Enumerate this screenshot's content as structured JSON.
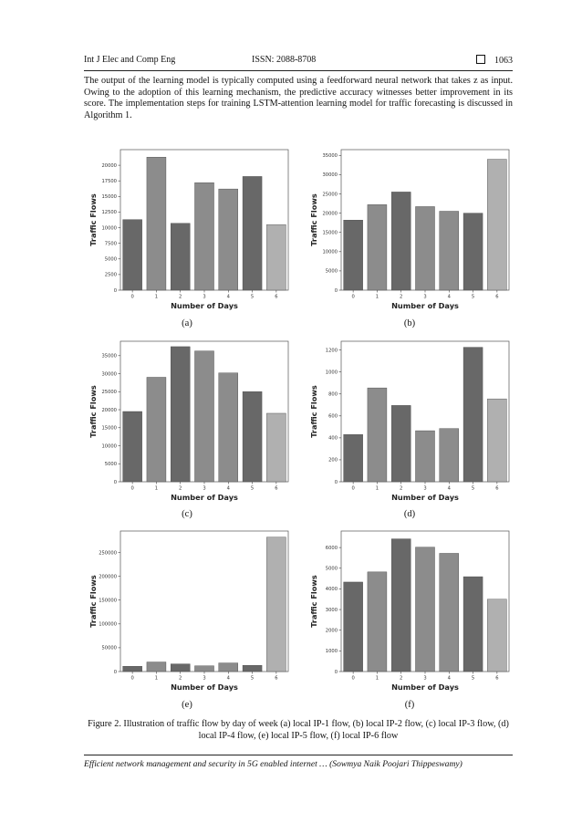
{
  "header": {
    "journal": "Int J Elec and Comp Eng",
    "issn": "ISSN: 2088-8708",
    "page": "1063"
  },
  "paragraph": "The output of the learning model is typically computed using a feedforward neural network that takes z as input. Owing to the adoption of this learning mechanism, the predictive accuracy witnesses better improvement in its score. The implementation steps for training LSTM-attention learning model for traffic forecasting is discussed in Algorithm 1.",
  "figure": {
    "sublabels": [
      "(a)",
      "(b)",
      "(c)",
      "(d)",
      "(e)",
      "(f)"
    ],
    "caption": "Figure 2. Illustration of traffic flow by day of week (a) local IP-1 flow, (b) local IP-2 flow, (c) local IP-3 flow, (d) local IP-4 flow, (e) local IP-5 flow, (f) local IP-6 flow"
  },
  "footer": "Efficient network management and security in 5G enabled internet … (Sowmya Naik Poojari Thippeswamy)",
  "colors": {
    "bar_shades": [
      "#686868",
      "#8c8c8c",
      "#686868",
      "#8c8c8c",
      "#8c8c8c",
      "#686868",
      "#b0b0b0"
    ]
  },
  "chart_data": [
    {
      "type": "bar",
      "xlabel": "Number of Days",
      "ylabel": "Traffic Flows",
      "categories": [
        "0",
        "1",
        "2",
        "3",
        "4",
        "5",
        "6"
      ],
      "values": [
        11300,
        21300,
        10700,
        17200,
        16200,
        18200,
        10500
      ],
      "yticks": [
        0,
        2500,
        5000,
        7500,
        10000,
        12500,
        15000,
        17500,
        20000
      ],
      "ylim": [
        0,
        22500
      ]
    },
    {
      "type": "bar",
      "xlabel": "Number of Days",
      "ylabel": "Traffic Flows",
      "categories": [
        "0",
        "1",
        "2",
        "3",
        "4",
        "5",
        "6"
      ],
      "values": [
        18200,
        22200,
        25500,
        21700,
        20500,
        20000,
        34000
      ],
      "yticks": [
        0,
        5000,
        10000,
        15000,
        20000,
        25000,
        30000,
        35000
      ],
      "ylim": [
        0,
        36500
      ]
    },
    {
      "type": "bar",
      "xlabel": "Number of Days",
      "ylabel": "Traffic Flows",
      "categories": [
        "0",
        "1",
        "2",
        "3",
        "4",
        "5",
        "6"
      ],
      "values": [
        19500,
        29000,
        37500,
        36300,
        30200,
        25000,
        19000
      ],
      "yticks": [
        0,
        5000,
        10000,
        15000,
        20000,
        25000,
        30000,
        35000
      ],
      "ylim": [
        0,
        39000
      ]
    },
    {
      "type": "bar",
      "xlabel": "Number of Days",
      "ylabel": "Traffic Flows",
      "categories": [
        "0",
        "1",
        "2",
        "3",
        "4",
        "5",
        "6"
      ],
      "values": [
        430,
        855,
        695,
        465,
        485,
        1225,
        755
      ],
      "yticks": [
        0,
        200,
        400,
        600,
        800,
        1000,
        1200
      ],
      "ylim": [
        0,
        1280
      ]
    },
    {
      "type": "bar",
      "xlabel": "Number of Days",
      "ylabel": "Traffic Flows",
      "categories": [
        "0",
        "1",
        "2",
        "3",
        "4",
        "5",
        "6"
      ],
      "values": [
        11000,
        20000,
        16000,
        12000,
        18000,
        13000,
        282000
      ],
      "yticks": [
        0,
        50000,
        100000,
        150000,
        200000,
        250000
      ],
      "ylim": [
        0,
        295000
      ]
    },
    {
      "type": "bar",
      "xlabel": "Number of Days",
      "ylabel": "Traffic Flows",
      "categories": [
        "0",
        "1",
        "2",
        "3",
        "4",
        "5",
        "6"
      ],
      "values": [
        4330,
        4820,
        6420,
        6020,
        5720,
        4590,
        3500
      ],
      "yticks": [
        0,
        1000,
        2000,
        3000,
        4000,
        5000,
        6000
      ],
      "ylim": [
        0,
        6800
      ]
    }
  ]
}
